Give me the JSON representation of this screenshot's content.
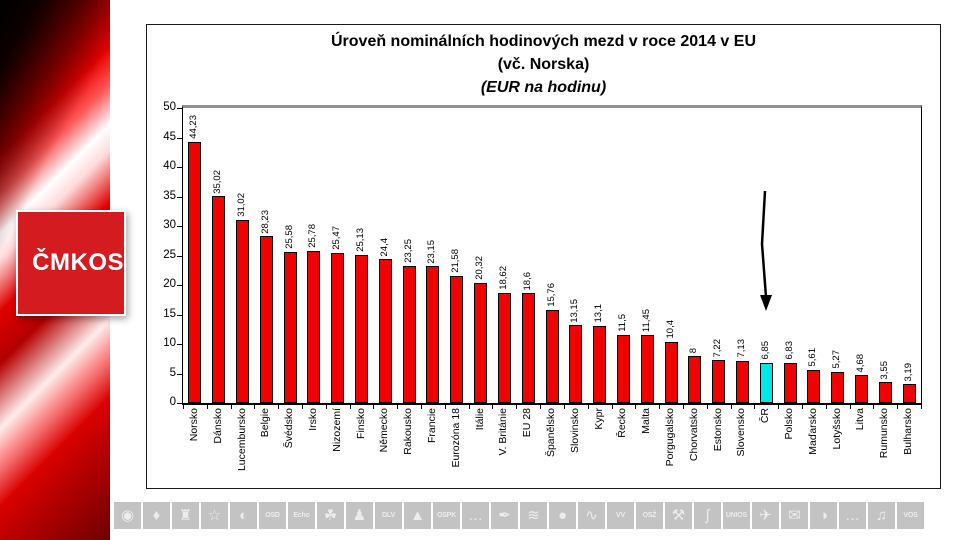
{
  "sidebar": {
    "logo_text": "ČMKOS",
    "logo_bg_color": "#d31b20",
    "logo_text_color": "#ffffff"
  },
  "chart": {
    "title_line1": "Úroveň nominálních hodinových mezd v roce 2014 v EU",
    "title_line2": "(vč. Norska)",
    "title_line3": "(EUR na hodinu)"
  },
  "chart_data": {
    "type": "bar",
    "title": "Úroveň nominálních hodinových mezd v roce 2014 v EU (vč. Norska) (EUR na hodinu)",
    "categories": [
      "Norsko",
      "Dánsko",
      "Lucembursko",
      "Belgie",
      "Švédsko",
      "Irsko",
      "Nizozemí",
      "Finsko",
      "Německo",
      "Rakousko",
      "Francie",
      "Eurozóna 18",
      "Itálie",
      "V. Británie",
      "EU 28",
      "Španělsko",
      "Slovinsko",
      "Kypr",
      "Řecko",
      "Malta",
      "Porgugalsko",
      "Chorvatsko",
      "Estonsko",
      "Slovensko",
      "ČR",
      "Polsko",
      "Maďarsko",
      "Lotyšsko",
      "Litva",
      "Rumunsko",
      "Bulharsko"
    ],
    "values": [
      44.23,
      35.02,
      31.02,
      28.23,
      25.58,
      25.78,
      25.47,
      25.13,
      24.4,
      23.25,
      23.15,
      21.58,
      20.32,
      18.62,
      18.6,
      15.76,
      13.15,
      13.1,
      11.5,
      11.45,
      10.4,
      8,
      7.22,
      7.13,
      6.85,
      6.83,
      5.61,
      5.27,
      4.68,
      3.55,
      3.19
    ],
    "value_labels": [
      "44,23",
      "35,02",
      "31,02",
      "28,23",
      "25,58",
      "25,78",
      "25,47",
      "25,13",
      "24,4",
      "23,25",
      "23,15",
      "21,58",
      "20,32",
      "18,62",
      "18,6",
      "15,76",
      "13,15",
      "13,1",
      "11,5",
      "11,45",
      "10,4",
      "8",
      "7,22",
      "7,13",
      "6,85",
      "6,83",
      "5,61",
      "5,27",
      "4,68",
      "3,55",
      "3,19"
    ],
    "ylim": [
      0,
      50
    ],
    "ytick_labels": [
      "0",
      "5",
      "10",
      "15",
      "20",
      "25",
      "30",
      "35",
      "40",
      "45",
      "50"
    ],
    "grid": "off",
    "legend": "none",
    "bar_color": "#ee0202",
    "highlight_index": 24,
    "highlight_color": "#00e7e7",
    "annotation": {
      "type": "arrow-down",
      "target": "ČR"
    }
  },
  "footer": {
    "icons": [
      {
        "name": "emblem-icon",
        "glyph": "◉"
      },
      {
        "name": "goblet-icon",
        "glyph": "♦"
      },
      {
        "name": "tower-icon",
        "glyph": "♜"
      },
      {
        "name": "signpost-icon",
        "glyph": "☆"
      },
      {
        "name": "camera-icon",
        "glyph": "◐"
      },
      {
        "name": "osd-logo",
        "text": "OSD"
      },
      {
        "name": "echo-logo",
        "text": "Echo"
      },
      {
        "name": "leaf-hand-icon",
        "glyph": "☘"
      },
      {
        "name": "figure-icon",
        "glyph": "♟"
      },
      {
        "name": "dlv-logo",
        "text": "DLV"
      },
      {
        "name": "mountain-icon",
        "glyph": "▲"
      },
      {
        "name": "ospk-logo",
        "text": "OSPK"
      },
      {
        "name": "union-text-logo-1",
        "glyph": "…"
      },
      {
        "name": "pen-icon",
        "glyph": "✒"
      },
      {
        "name": "ribbon-icon",
        "glyph": "≋"
      },
      {
        "name": "globe-icon",
        "glyph": "●"
      },
      {
        "name": "waves-icon",
        "glyph": "∿"
      },
      {
        "name": "vv-logo",
        "text": "VV"
      },
      {
        "name": "osz-logo",
        "text": "OSŽ"
      },
      {
        "name": "hammer-icon",
        "glyph": "⚒"
      },
      {
        "name": "s-curve-icon",
        "glyph": "∫"
      },
      {
        "name": "unios-logo",
        "text": "UNIOS"
      },
      {
        "name": "airplane-icon",
        "glyph": "✈"
      },
      {
        "name": "posthorn-icon",
        "glyph": "✉"
      },
      {
        "name": "circle-half-icon",
        "glyph": "◑"
      },
      {
        "name": "union-text-logo-2",
        "glyph": "…"
      },
      {
        "name": "lyre-icon",
        "glyph": "♫"
      },
      {
        "name": "vos-logo",
        "text": "VOS"
      }
    ]
  }
}
